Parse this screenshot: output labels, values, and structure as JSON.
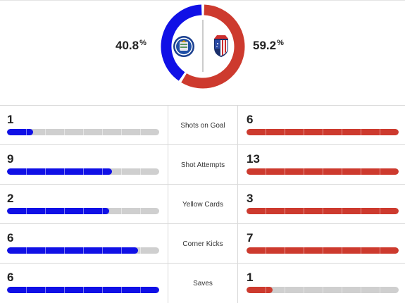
{
  "possession": {
    "home_value": "40.8",
    "away_value": "59.2",
    "unit": "%",
    "home_fraction": 0.408,
    "away_fraction": 0.592,
    "home_color": "#1010e6",
    "away_color": "#cd3a2e"
  },
  "teams": {
    "home_logo_icon": "getafe-crest-icon",
    "away_logo_icon": "atletico-madrid-crest-icon"
  },
  "stats": [
    {
      "label": "Shots on Goal",
      "home": "1",
      "away": "6",
      "home_fill": 0.17,
      "away_fill": 1.0
    },
    {
      "label": "Shot Attempts",
      "home": "9",
      "away": "13",
      "home_fill": 0.69,
      "away_fill": 1.0
    },
    {
      "label": "Yellow Cards",
      "home": "2",
      "away": "3",
      "home_fill": 0.67,
      "away_fill": 1.0
    },
    {
      "label": "Corner Kicks",
      "home": "6",
      "away": "7",
      "home_fill": 0.86,
      "away_fill": 1.0
    },
    {
      "label": "Saves",
      "home": "6",
      "away": "1",
      "home_fill": 1.0,
      "away_fill": 0.17
    }
  ]
}
